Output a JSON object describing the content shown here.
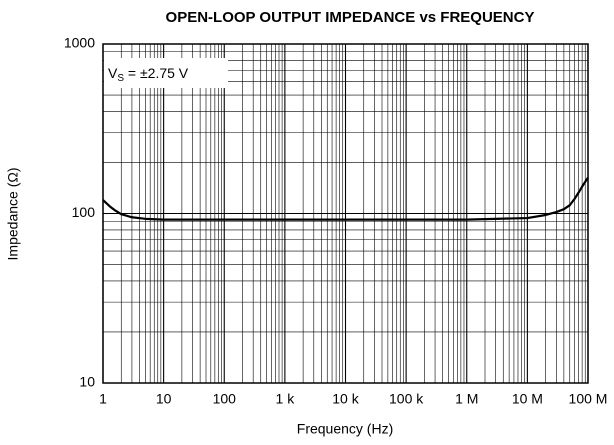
{
  "chart_data": {
    "type": "line",
    "title": "OPEN-LOOP OUTPUT IMPEDANCE vs FREQUENCY",
    "x_label": "Frequency (Hz)",
    "y_label": "Impedance (Ω)",
    "annotation": {
      "main": "V",
      "sub": "S",
      "rest": " = ±2.75 V"
    },
    "x": [
      1,
      1.3,
      1.6,
      2,
      3,
      5,
      10,
      100,
      1000,
      10000,
      100000,
      1000000,
      10000000,
      20000000,
      30000000,
      40000000,
      50000000,
      60000000,
      70000000,
      80000000,
      100000000
    ],
    "values": [
      120,
      110,
      104,
      99,
      95,
      93,
      92,
      92,
      92,
      92,
      92,
      92,
      94,
      98,
      102,
      106,
      112,
      122,
      133,
      144,
      163
    ],
    "color": "#000000",
    "x_log": true,
    "y_log": true,
    "grid": true,
    "minor_grid": true,
    "xlim": [
      1,
      100000000
    ],
    "ylim": [
      10,
      1000
    ],
    "xticks": [
      1,
      10,
      100,
      {
        "value": 1000,
        "label": "1 k"
      },
      {
        "value": 10000,
        "label": "10 k"
      },
      {
        "value": 100000,
        "label": "100 k"
      },
      {
        "value": 1000000,
        "label": "1 M"
      },
      {
        "value": 10000000,
        "label": "10 M"
      },
      {
        "value": 100000000,
        "label": "100 M"
      }
    ],
    "yticks": [
      10,
      100,
      1000
    ]
  }
}
